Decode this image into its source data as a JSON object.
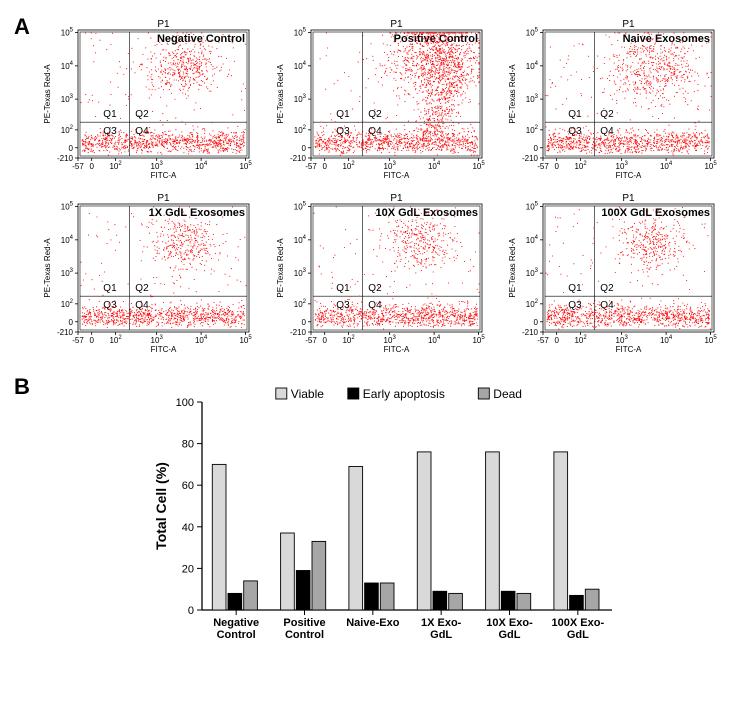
{
  "panelA": {
    "label": "A",
    "ylabel": "PE-Texas Red-A",
    "xlabel": "FITC-A",
    "gate_name": "P1",
    "x_ticks": [
      "-57",
      "0",
      "10^2",
      "10^3",
      "10^4",
      "10^5"
    ],
    "y_ticks": [
      "-210",
      "0",
      "10^2",
      "10^3",
      "10^4",
      "10^5"
    ],
    "quadrant_labels": {
      "q1": "Q1",
      "q2": "Q2",
      "q3": "Q3",
      "q4": "Q4"
    },
    "dot_color": "#ff0000",
    "plots": [
      {
        "title": "Negative Control",
        "cluster": "neg"
      },
      {
        "title": "Positive Control",
        "cluster": "pos"
      },
      {
        "title": "Naive Exosomes",
        "cluster": "naive"
      },
      {
        "title": "1X GdL Exosomes",
        "cluster": "gdl"
      },
      {
        "title": "10X GdL Exosomes",
        "cluster": "gdl"
      },
      {
        "title": "100X GdL Exosomes",
        "cluster": "gdl"
      }
    ]
  },
  "panelB": {
    "label": "B",
    "ylabel": "Total Cell (%)",
    "ylim": [
      0,
      100
    ],
    "ytick_step": 20,
    "tick_fontsize": 11,
    "label_fontsize": 14,
    "categories": [
      "Negative\nControl",
      "Positive\nControl",
      "Naive-Exo",
      "1X Exo-\nGdL",
      "10X Exo-\nGdL",
      "100X Exo-\nGdL"
    ],
    "series": [
      {
        "name": "Viable",
        "color": "#d9d9d9",
        "values": [
          70,
          37,
          69,
          76,
          76,
          76
        ]
      },
      {
        "name": "Early apoptosis",
        "color": "#000000",
        "values": [
          8,
          19,
          13,
          9,
          9,
          7
        ]
      },
      {
        "name": "Dead",
        "color": "#a6a6a6",
        "values": [
          14,
          33,
          13,
          8,
          8,
          10
        ]
      }
    ],
    "bar_border": "#000000",
    "background": "#ffffff"
  }
}
